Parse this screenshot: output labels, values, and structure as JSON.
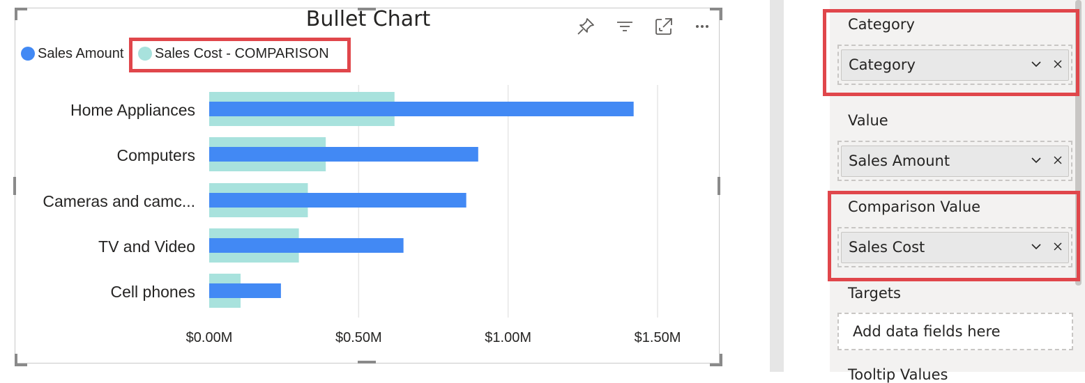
{
  "visual": {
    "title": "Bullet Chart",
    "header_icons": [
      "pin-icon",
      "filter-icon",
      "focus-mode-icon",
      "more-options-icon"
    ]
  },
  "legend": [
    {
      "label": "Sales Amount",
      "color": "#4289f4"
    },
    {
      "label": "Sales Cost - COMPARISON",
      "color": "#a8e2dd"
    }
  ],
  "chart_data": {
    "type": "bar",
    "orientation": "horizontal",
    "title": "Bullet Chart",
    "categories": [
      "Home Appliances",
      "Computers",
      "Cameras and camc...",
      "TV and Video",
      "Cell phones"
    ],
    "series": [
      {
        "name": "Sales Amount",
        "color": "#4289f4",
        "values": [
          1.42,
          0.9,
          0.86,
          0.65,
          0.24
        ]
      },
      {
        "name": "Sales Cost - COMPARISON",
        "color": "#a8e2dd",
        "values": [
          0.62,
          0.39,
          0.33,
          0.3,
          0.105
        ]
      }
    ],
    "x_ticks": [
      {
        "value": 0,
        "label": "$0.00M"
      },
      {
        "value": 0.5,
        "label": "$0.50M"
      },
      {
        "value": 1.0,
        "label": "$1.00M"
      },
      {
        "value": 1.5,
        "label": "$1.50M"
      }
    ],
    "xlim": [
      0,
      1.5
    ],
    "units": "$M",
    "grid": true,
    "legend_position": "top-left"
  },
  "fields_pane": {
    "category": {
      "title": "Category",
      "field": "Category"
    },
    "value": {
      "title": "Value",
      "field": "Sales Amount"
    },
    "comparison": {
      "title": "Comparison Value",
      "field": "Sales Cost"
    },
    "targets": {
      "title": "Targets",
      "placeholder": "Add data fields here"
    },
    "next_section_partial": "Tooltip Values"
  },
  "colors": {
    "highlight": "#e0464b",
    "accent_blue": "#4289f4",
    "accent_teal": "#a8e2dd"
  }
}
